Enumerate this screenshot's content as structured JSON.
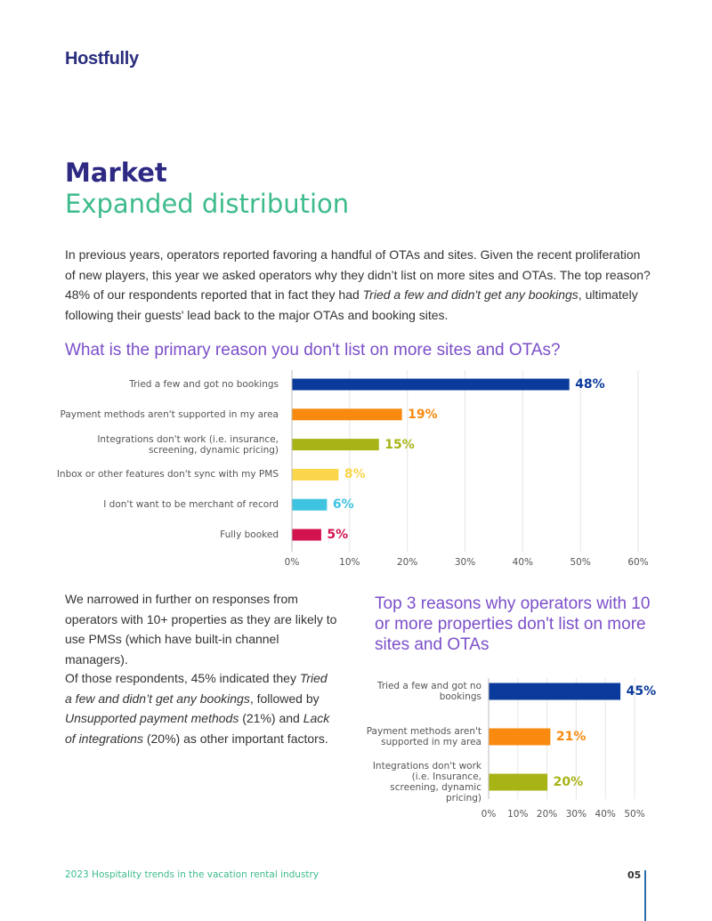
{
  "header": {
    "logo": "Hostfully",
    "title": "Market",
    "subtitle": "Expanded distribution"
  },
  "intro": [
    "In previous years, operators reported favoring a handful of OTAs and sites. Given the recent proliferation of new players, this year we asked operators why they didn’t list on more sites and OTAs. The top reason? 48% of our respondents reported that in fact they had ",
    "Tried a few and didn't get any bookings",
    ", ultimately following their guests' lead back to the major OTAs and booking sites."
  ],
  "body": [
    "We narrowed in further on responses from operators with 10+ properties as they are likely to use PMSs (which have built-in channel managers).",
    [
      "Of those respondents, 45% indicated they ",
      "Tried a few and didn’t get any bookings",
      ", followed by ",
      "Unsupported payment methods",
      " (21%) and ",
      "Lack of integrations",
      " (20%) as other important factors."
    ]
  ],
  "chart_data": [
    {
      "type": "bar",
      "orientation": "horizontal",
      "title": "What is the primary reason you don't list on more sites and OTAs?",
      "categories": [
        "Tried a few and got no bookings",
        "Payment methods aren't supported in my area",
        "Integrations don't work (i.e. insurance, screening, dynamic pricing)",
        "Inbox or other features don't sync with my PMS",
        "I don't want to be merchant of record",
        "Fully booked"
      ],
      "values": [
        48,
        19,
        15,
        8,
        6,
        5
      ],
      "value_labels": [
        "48%",
        "19%",
        "15%",
        "8%",
        "6%",
        "5%"
      ],
      "colors": [
        "#0a3a9b",
        "#f98a0f",
        "#a8b416",
        "#fbd54a",
        "#3ec4e0",
        "#d3134f"
      ],
      "xlim": [
        0,
        60
      ],
      "xticks": [
        {
          "value": 0,
          "label": "0%"
        },
        {
          "value": 10,
          "label": "10%"
        },
        {
          "value": 20,
          "label": "20%"
        },
        {
          "value": 30,
          "label": "30%"
        },
        {
          "value": 40,
          "label": "40%"
        },
        {
          "value": 50,
          "label": "50%"
        },
        {
          "value": 60,
          "label": "60%"
        }
      ],
      "grid": true
    },
    {
      "type": "bar",
      "orientation": "horizontal",
      "title": "Top 3 reasons why operators with 10 or more properties don't list on more sites and OTAs",
      "categories": [
        "Tried a few and got no bookings",
        "Payment methods aren't supported in my area",
        "Integrations don't work (i.e. Insurance, screening, dynamic pricing)"
      ],
      "values": [
        45,
        21,
        20
      ],
      "value_labels": [
        "45%",
        "21%",
        "20%"
      ],
      "colors": [
        "#0a3a9b",
        "#f98a0f",
        "#a8b416"
      ],
      "xlim": [
        0,
        50
      ],
      "xticks": [
        {
          "value": 0,
          "label": "0%"
        },
        {
          "value": 10,
          "label": "10%"
        },
        {
          "value": 20,
          "label": "20%"
        },
        {
          "value": 30,
          "label": "30%"
        },
        {
          "value": 40,
          "label": "40%"
        },
        {
          "value": 50,
          "label": "50%"
        }
      ],
      "grid": true
    }
  ],
  "footer": {
    "text": "2023 Hospitality trends in the vacation rental industry",
    "page": "05"
  }
}
